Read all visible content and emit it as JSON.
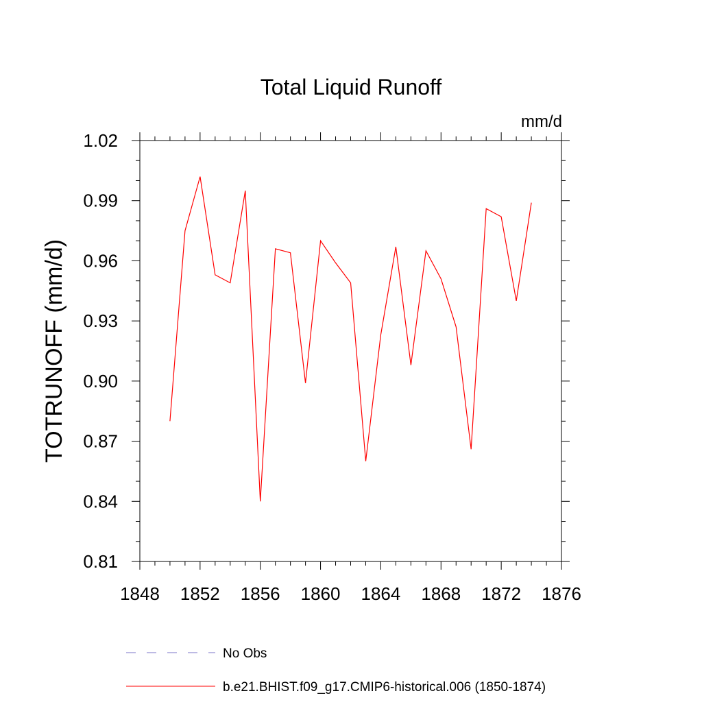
{
  "colors": {
    "model_line": "#ff0000",
    "obs_line": "#7b74c9",
    "axis": "#000000",
    "background": "#ffffff"
  },
  "chart_data": {
    "type": "line",
    "title": "Total Liquid Runoff",
    "units_label": "mm/d",
    "xlabel": "",
    "ylabel": "TOTRUNOFF  (mm/d)",
    "xlim": [
      1848,
      1876
    ],
    "ylim": [
      0.81,
      1.02
    ],
    "x_ticks": [
      "1848",
      "1852",
      "1856",
      "1860",
      "1864",
      "1868",
      "1872",
      "1876"
    ],
    "y_ticks": [
      "0.81",
      "0.84",
      "0.87",
      "0.90",
      "0.93",
      "0.96",
      "0.99",
      "1.02"
    ],
    "grid": false,
    "legend_position": "bottom",
    "series": [
      {
        "name": "b.e21.BHIST.f09_g17.CMIP6-historical.006 (1850-1874)",
        "style": "solid",
        "x": [
          1850,
          1851,
          1852,
          1853,
          1854,
          1855,
          1856,
          1857,
          1858,
          1859,
          1860,
          1861,
          1862,
          1863,
          1864,
          1865,
          1866,
          1867,
          1868,
          1869,
          1870,
          1871,
          1872,
          1873,
          1874
        ],
        "y": [
          0.88,
          0.975,
          1.002,
          0.953,
          0.949,
          0.995,
          0.84,
          0.966,
          0.964,
          0.899,
          0.97,
          0.959,
          0.949,
          0.86,
          0.923,
          0.967,
          0.908,
          0.965,
          0.951,
          0.927,
          0.866,
          0.986,
          0.982,
          0.94,
          0.989
        ]
      }
    ],
    "legend": [
      {
        "label": "No Obs",
        "style": "dashed"
      },
      {
        "label": "b.e21.BHIST.f09_g17.CMIP6-historical.006 (1850-1874)",
        "style": "solid"
      }
    ]
  }
}
